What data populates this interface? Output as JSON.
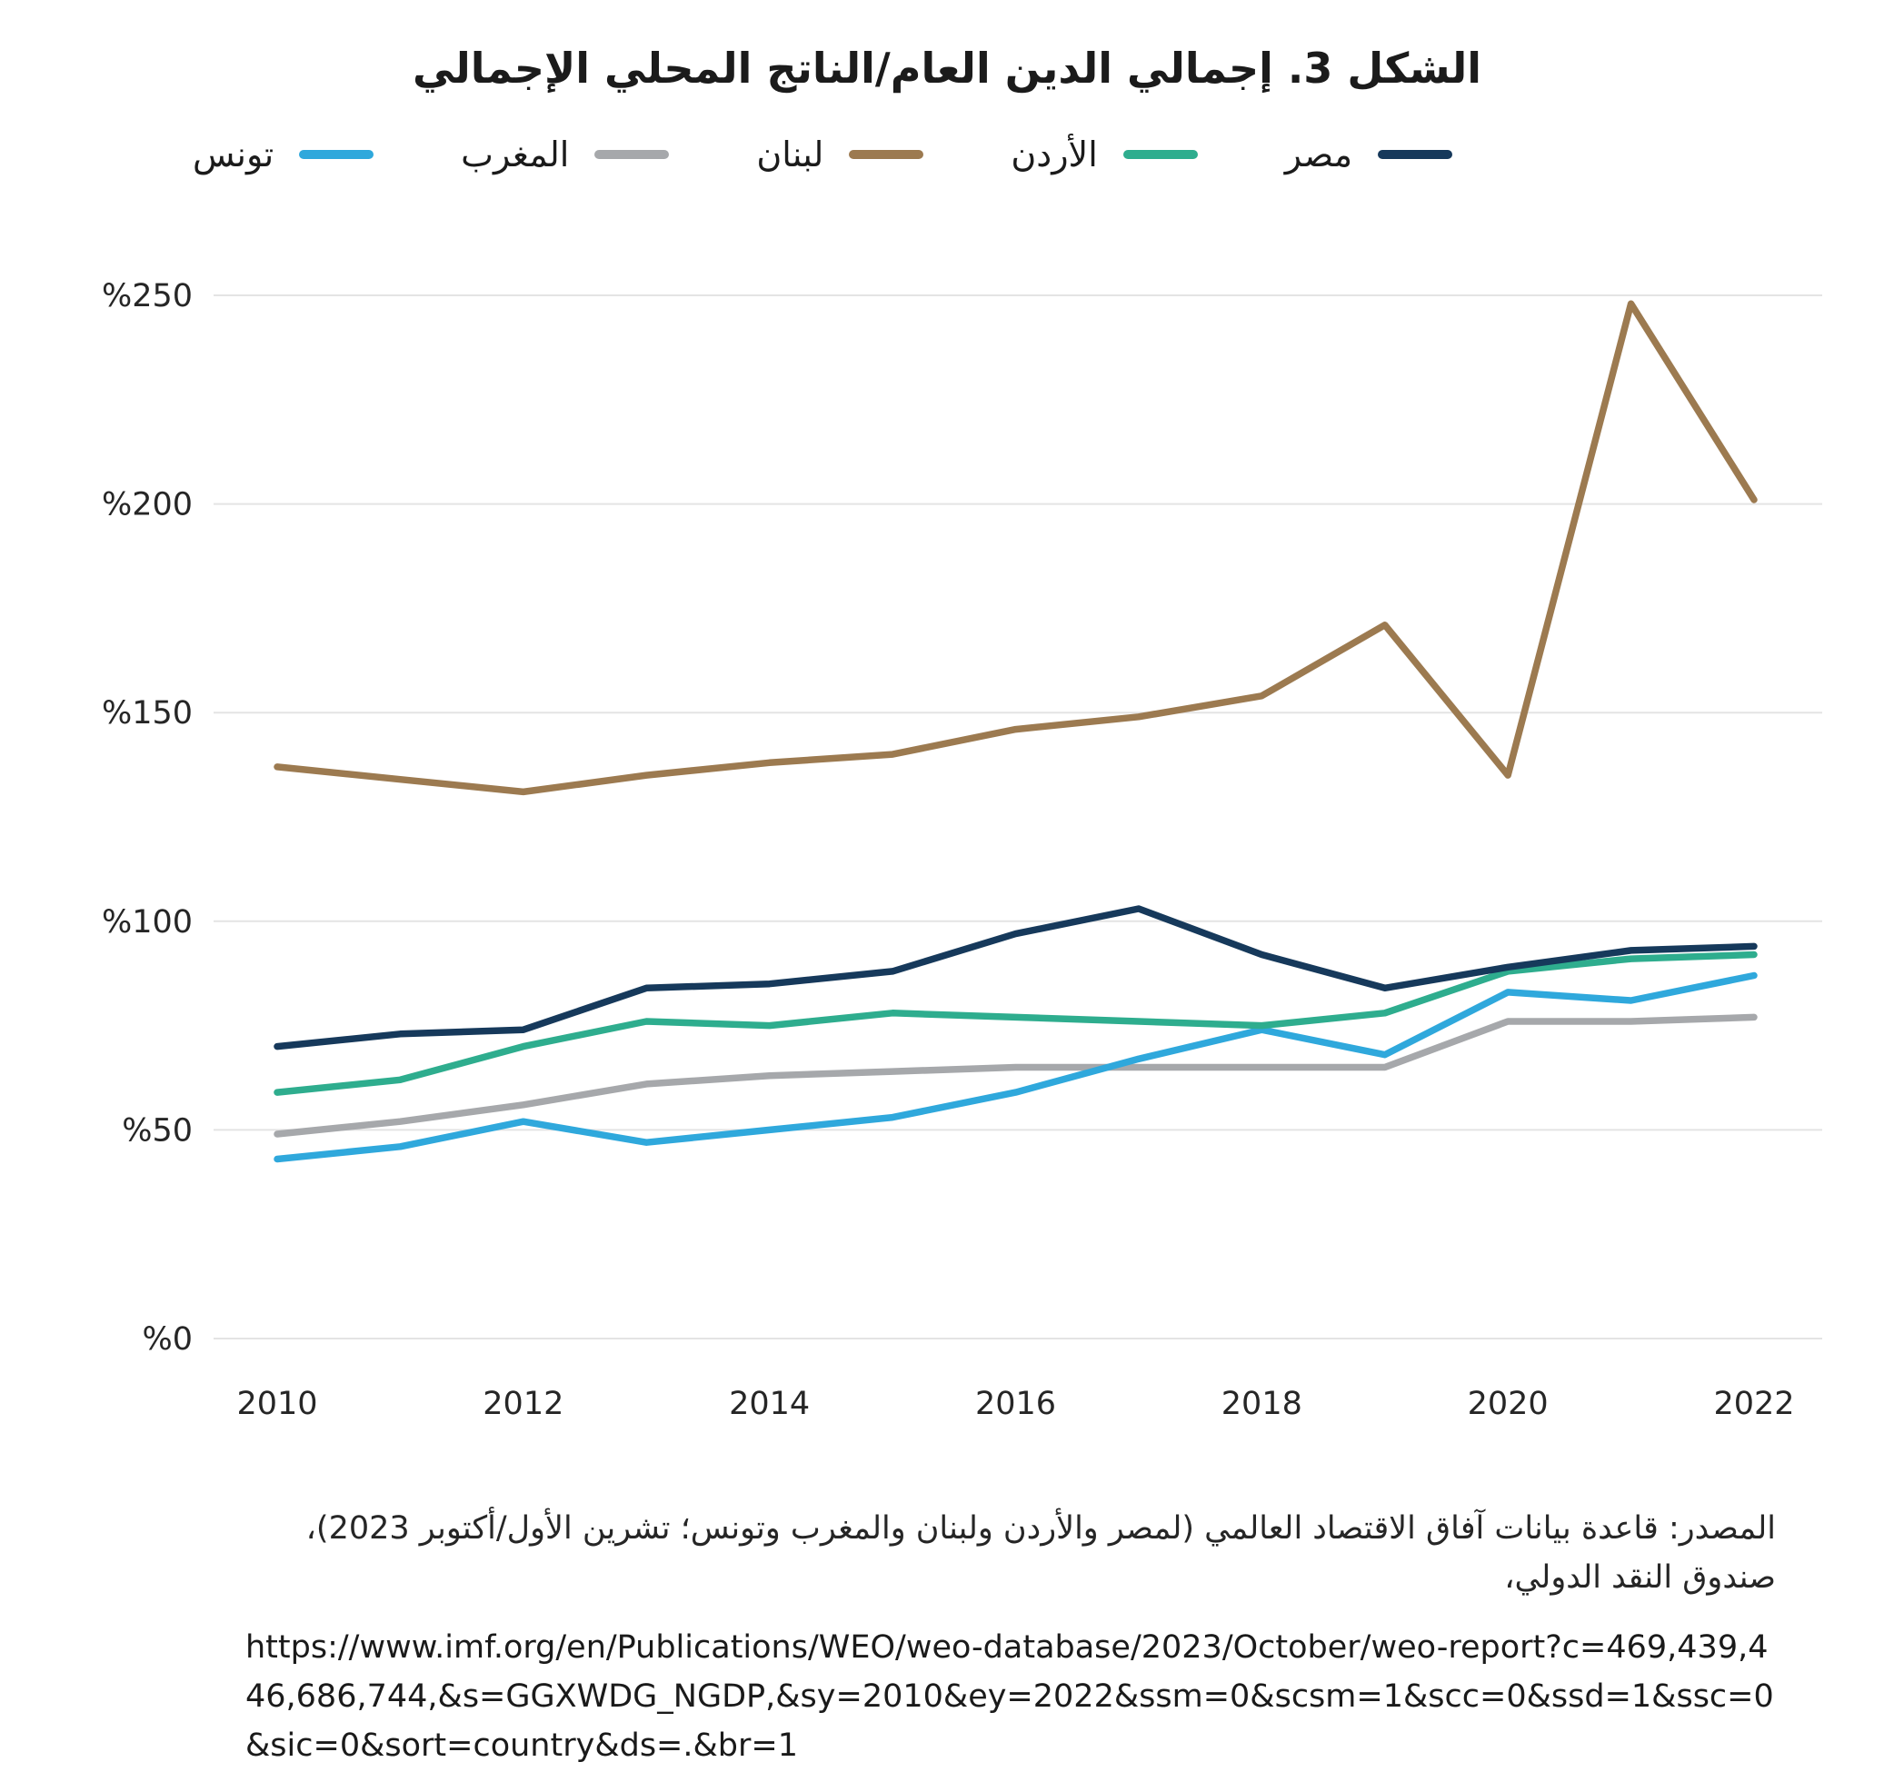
{
  "title": "الشكل 3. إجمالي الدين العام/الناتج المحلي الإجمالي",
  "legend": [
    {
      "label": "تونس",
      "color": "#2FA8DC"
    },
    {
      "label": "المغرب",
      "color": "#A6A8AB"
    },
    {
      "label": "لبنان",
      "color": "#9C7A50"
    },
    {
      "label": "الأردن",
      "color": "#2EAD8E"
    },
    {
      "label": "مصر",
      "color": "#16395B"
    }
  ],
  "chart_data": {
    "type": "line",
    "title": "الشكل 3. إجمالي الدين العام/الناتج المحلي الإجمالي",
    "xlabel": "",
    "ylabel": "",
    "ylim": [
      0,
      250
    ],
    "grid": true,
    "legend_position": "top",
    "x": [
      2010,
      2011,
      2012,
      2013,
      2014,
      2015,
      2016,
      2017,
      2018,
      2019,
      2020,
      2021,
      2022
    ],
    "yticks": [
      {
        "value": 0,
        "label": "%0"
      },
      {
        "value": 50,
        "label": "%50"
      },
      {
        "value": 100,
        "label": "%100"
      },
      {
        "value": 150,
        "label": "%150"
      },
      {
        "value": 200,
        "label": "%200"
      },
      {
        "value": 250,
        "label": "%250"
      }
    ],
    "xticks": [
      {
        "value": 2010,
        "label": "2010"
      },
      {
        "value": 2012,
        "label": "2012"
      },
      {
        "value": 2014,
        "label": "2014"
      },
      {
        "value": 2016,
        "label": "2016"
      },
      {
        "value": 2018,
        "label": "2018"
      },
      {
        "value": 2020,
        "label": "2020"
      },
      {
        "value": 2022,
        "label": "2022"
      }
    ],
    "series": [
      {
        "key": "morocco",
        "name": "المغرب",
        "color": "#A6A8AB",
        "values": [
          49,
          52,
          56,
          61,
          63,
          64,
          65,
          65,
          65,
          65,
          76,
          76,
          77
        ]
      },
      {
        "key": "tunisia",
        "name": "تونس",
        "color": "#2FA8DC",
        "values": [
          43,
          46,
          52,
          47,
          50,
          53,
          59,
          67,
          74,
          68,
          83,
          81,
          87
        ]
      },
      {
        "key": "jordan",
        "name": "الأردن",
        "color": "#2EAD8E",
        "values": [
          59,
          62,
          70,
          76,
          75,
          78,
          77,
          76,
          75,
          78,
          88,
          91,
          92
        ]
      },
      {
        "key": "egypt",
        "name": "مصر",
        "color": "#16395B",
        "values": [
          70,
          73,
          74,
          84,
          85,
          88,
          97,
          103,
          92,
          84,
          89,
          93,
          94
        ]
      },
      {
        "key": "lebanon",
        "name": "لبنان",
        "color": "#9C7A50",
        "values": [
          137,
          134,
          131,
          135,
          138,
          140,
          146,
          149,
          154,
          171,
          135,
          248,
          201
        ]
      }
    ]
  },
  "source": {
    "line1": "المصدر: قاعدة بيانات آفاق الاقتصاد العالمي (لمصر والأردن ولبنان والمغرب وتونس؛ تشرين الأول/أكتوبر 2023)،",
    "line2": "صندوق النقد الدولي،",
    "url": "https://www.imf.org/en/Publications/WEO/weo-database/2023/October/weo-report?c=469,439,446,686,744,&s=GGXWDG_NGDP,&sy=2010&ey=2022&ssm=0&scsm=1&scc=0&ssd=1&ssc=0&sic=0&sort=country&ds=.&br=1"
  }
}
